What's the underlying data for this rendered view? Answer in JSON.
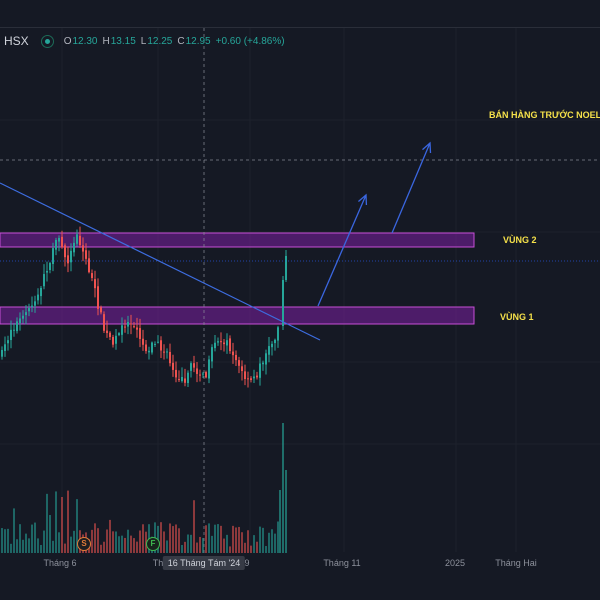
{
  "legend": {
    "exchange": "HSX",
    "open_label": "O",
    "open": "12.30",
    "high_label": "H",
    "high": "13.15",
    "low_label": "L",
    "low": "12.25",
    "close_label": "C",
    "close": "12.95",
    "change": "+0.60 (+4.86%)"
  },
  "annotations": {
    "noel_note": "BÁN HÀNG TRƯỚC NOEL",
    "zone2": "VÙNG 2",
    "zone1": "VÙNG 1"
  },
  "events": {
    "s_badge": "S",
    "f_badge": "F"
  },
  "crosshair": {
    "date_label": "16 Tháng Tám '24"
  },
  "colors": {
    "background": "#151924",
    "up": "#26a69a",
    "down": "#ef5350",
    "zone_fill": "#7b1fa2",
    "zone_border": "#c64ed6",
    "trendline": "#3d6de0",
    "arrow": "#3a66e0",
    "label_yellow": "#f5e14a"
  },
  "chart_data": {
    "type": "candlestick",
    "y_axis_visible": false,
    "x_tick_labels": [
      "Tháng 6",
      "Th",
      "9",
      "Tháng 11",
      "2025",
      "Tháng Hai"
    ],
    "last_bar": {
      "open": 12.3,
      "high": 13.15,
      "low": 12.25,
      "close": 12.95
    },
    "zones": [
      {
        "name": "VÙNG 2"
      },
      {
        "name": "VÙNG 1"
      }
    ]
  }
}
